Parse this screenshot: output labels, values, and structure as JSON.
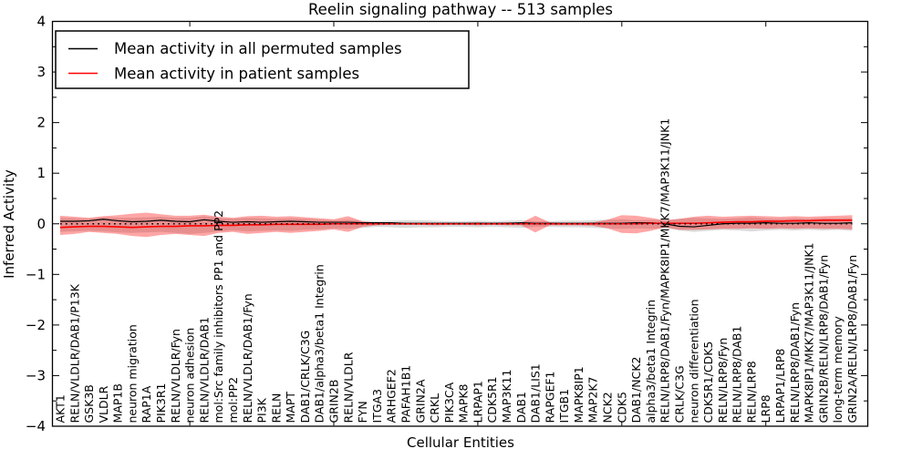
{
  "title": "Reelin signaling pathway -- 513 samples",
  "chart_data": {
    "type": "line",
    "title": "Reelin signaling pathway -- 513 samples",
    "xlabel": "Cellular Entities",
    "ylabel": "Inferred Activity",
    "ylim": [
      -4,
      4
    ],
    "yticks": [
      "4",
      "3",
      "2",
      "1",
      "0",
      "−1",
      "−2",
      "−3",
      "−4"
    ],
    "grid": false,
    "legend_position": "upper left",
    "zero_reference_line": {
      "style": "dotted",
      "color": "#000000",
      "value": 0
    },
    "legend": [
      {
        "label": "Mean activity in all permuted samples",
        "color": "#000000"
      },
      {
        "label": "Mean activity in patient samples",
        "color": "#ff0000"
      }
    ],
    "categories": [
      "AKT1",
      "RELN/VLDLR/DAB1/P13K",
      "GSK3B",
      "VLDLR",
      "MAP1B",
      "neuron migration",
      "RAP1A",
      "PIK3R1",
      "RELN/VLDLR/Fyn",
      "neuron adhesion",
      "RELN/VLDLR/DAB1",
      "mol:Src family inhibitors PP1 and PP2",
      "mol:PP2",
      "RELN/VLDLR/DAB1/Fyn",
      "PI3K",
      "RELN",
      "MAPT",
      "DAB1/CRLK/C3G",
      "DAB1/alpha3/beta1 Integrin",
      "GRIN2B",
      "RELN/VLDLR",
      "FYN",
      "ITGA3",
      "ARHGEF2",
      "PAFAH1B1",
      "GRIN2A",
      "CRKL",
      "PIK3CA",
      "MAPK8",
      "LRPAP1",
      "CDK5R1",
      "MAP3K11",
      "DAB1",
      "DAB1/LIS1",
      "RAPGEF1",
      "ITGB1",
      "MAPK8IP1",
      "MAP2K7",
      "NCK2",
      "CDK5",
      "DAB1/NCK2",
      "alpha3/beta1 Integrin",
      "RELN/LRP8/DAB1/Fyn/MAPK8IP1/MKK7/MAP3K11/JNK1",
      "CRLK/C3G",
      "neuron differentiation",
      "CDK5R1/CDK5",
      "RELN/LRP8/Fyn",
      "RELN/LRP8/DAB1",
      "RELN/LRP8",
      "LRP8",
      "LRPAP1/LRP8",
      "RELN/LRP8/DAB1/Fyn",
      "MAPK8IP1/MKK7/MAP3K11/JNK1",
      "GRIN2B/RELN/LRP8/DAB1/Fyn",
      "long-term memory",
      "GRIN2A/RELN/LRP8/DAB1/Fyn"
    ],
    "series": [
      {
        "name": "Mean activity in all permuted samples",
        "color": "#000000",
        "values": [
          0.05,
          0.05,
          0.06,
          0.09,
          0.06,
          0.04,
          0.05,
          0.07,
          0.05,
          0.04,
          0.08,
          0.05,
          0.03,
          0.04,
          0.03,
          0.04,
          0.05,
          0.04,
          0.03,
          0.03,
          0.03,
          0.02,
          0.02,
          0.02,
          0.01,
          0.01,
          0.01,
          0.01,
          0.01,
          0.01,
          0.01,
          0.01,
          0.02,
          0.01,
          0.01,
          0.01,
          0.01,
          0.01,
          0.01,
          0.01,
          0.02,
          0.02,
          0.0,
          -0.05,
          -0.06,
          -0.03,
          0.0,
          0.01,
          0.01,
          0.02,
          0.01,
          0.01,
          0.02,
          0.01,
          0.01,
          0.02
        ]
      },
      {
        "name": "Mean activity in patient samples",
        "color": "#ff0000",
        "values": [
          -0.07,
          -0.06,
          -0.05,
          -0.05,
          -0.06,
          -0.07,
          -0.06,
          -0.05,
          -0.05,
          -0.04,
          -0.04,
          -0.03,
          -0.03,
          -0.02,
          -0.02,
          -0.01,
          -0.01,
          -0.01,
          -0.01,
          0.0,
          0.0,
          0.0,
          0.0,
          0.0,
          0.0,
          0.0,
          0.0,
          0.0,
          0.0,
          0.0,
          0.0,
          0.0,
          0.0,
          0.0,
          0.0,
          0.0,
          0.0,
          0.0,
          0.0,
          0.0,
          0.0,
          0.01,
          0.01,
          0.01,
          0.01,
          0.02,
          0.03,
          0.04,
          0.04,
          0.05,
          0.05,
          0.06,
          0.06,
          0.07,
          0.07,
          0.07
        ]
      }
    ],
    "bands": [
      {
        "name": "permuted samples range",
        "color": "rgba(0,0,0,0.14)",
        "upper": [
          0.12,
          0.11,
          0.1,
          0.13,
          0.12,
          0.12,
          0.13,
          0.14,
          0.12,
          0.12,
          0.15,
          0.12,
          0.1,
          0.12,
          0.11,
          0.1,
          0.11,
          0.1,
          0.08,
          0.07,
          0.08,
          0.06,
          0.05,
          0.06,
          0.07,
          0.07,
          0.06,
          0.05,
          0.05,
          0.06,
          0.05,
          0.06,
          0.07,
          0.05,
          0.05,
          0.06,
          0.06,
          0.07,
          0.08,
          0.09,
          0.07,
          0.08,
          0.07,
          0.1,
          0.12,
          0.11,
          0.1,
          0.11,
          0.13,
          0.11,
          0.1,
          0.11,
          0.1,
          0.12,
          0.11,
          0.12
        ],
        "lower": [
          -0.16,
          -0.15,
          -0.14,
          -0.15,
          -0.17,
          -0.18,
          -0.17,
          -0.16,
          -0.18,
          -0.2,
          -0.18,
          -0.15,
          -0.13,
          -0.15,
          -0.14,
          -0.13,
          -0.14,
          -0.12,
          -0.11,
          -0.09,
          -0.1,
          -0.08,
          -0.06,
          -0.07,
          -0.08,
          -0.07,
          -0.07,
          -0.06,
          -0.06,
          -0.07,
          -0.06,
          -0.07,
          -0.08,
          -0.06,
          -0.06,
          -0.07,
          -0.07,
          -0.08,
          -0.09,
          -0.1,
          -0.09,
          -0.1,
          -0.09,
          -0.13,
          -0.16,
          -0.14,
          -0.12,
          -0.13,
          -0.15,
          -0.13,
          -0.12,
          -0.13,
          -0.12,
          -0.13,
          -0.12,
          -0.14
        ]
      },
      {
        "name": "patient samples range",
        "color": "rgba(255,0,0,0.35)",
        "upper": [
          0.16,
          0.14,
          0.12,
          0.15,
          0.17,
          0.2,
          0.22,
          0.19,
          0.16,
          0.16,
          0.18,
          0.14,
          0.12,
          0.15,
          0.16,
          0.14,
          0.15,
          0.13,
          0.11,
          0.09,
          0.15,
          0.05,
          0.02,
          0.02,
          0.02,
          0.02,
          0.02,
          0.02,
          0.02,
          0.03,
          0.02,
          0.03,
          0.02,
          0.16,
          0.03,
          0.02,
          0.02,
          0.03,
          0.08,
          0.17,
          0.16,
          0.12,
          0.07,
          0.1,
          0.14,
          0.16,
          0.14,
          0.15,
          0.16,
          0.15,
          0.14,
          0.15,
          0.14,
          0.15,
          0.16,
          0.17
        ],
        "lower": [
          -0.22,
          -0.2,
          -0.16,
          -0.18,
          -0.2,
          -0.24,
          -0.26,
          -0.22,
          -0.2,
          -0.22,
          -0.24,
          -0.18,
          -0.16,
          -0.2,
          -0.18,
          -0.16,
          -0.18,
          -0.16,
          -0.14,
          -0.11,
          -0.16,
          -0.06,
          -0.03,
          -0.02,
          -0.02,
          -0.02,
          -0.03,
          -0.02,
          -0.02,
          -0.03,
          -0.02,
          -0.03,
          -0.03,
          -0.17,
          -0.03,
          -0.03,
          -0.03,
          -0.04,
          -0.09,
          -0.18,
          -0.19,
          -0.14,
          -0.07,
          -0.12,
          -0.12,
          -0.11,
          -0.1,
          -0.1,
          -0.09,
          -0.1,
          -0.09,
          -0.1,
          -0.09,
          -0.1,
          -0.1,
          -0.11
        ]
      }
    ]
  }
}
